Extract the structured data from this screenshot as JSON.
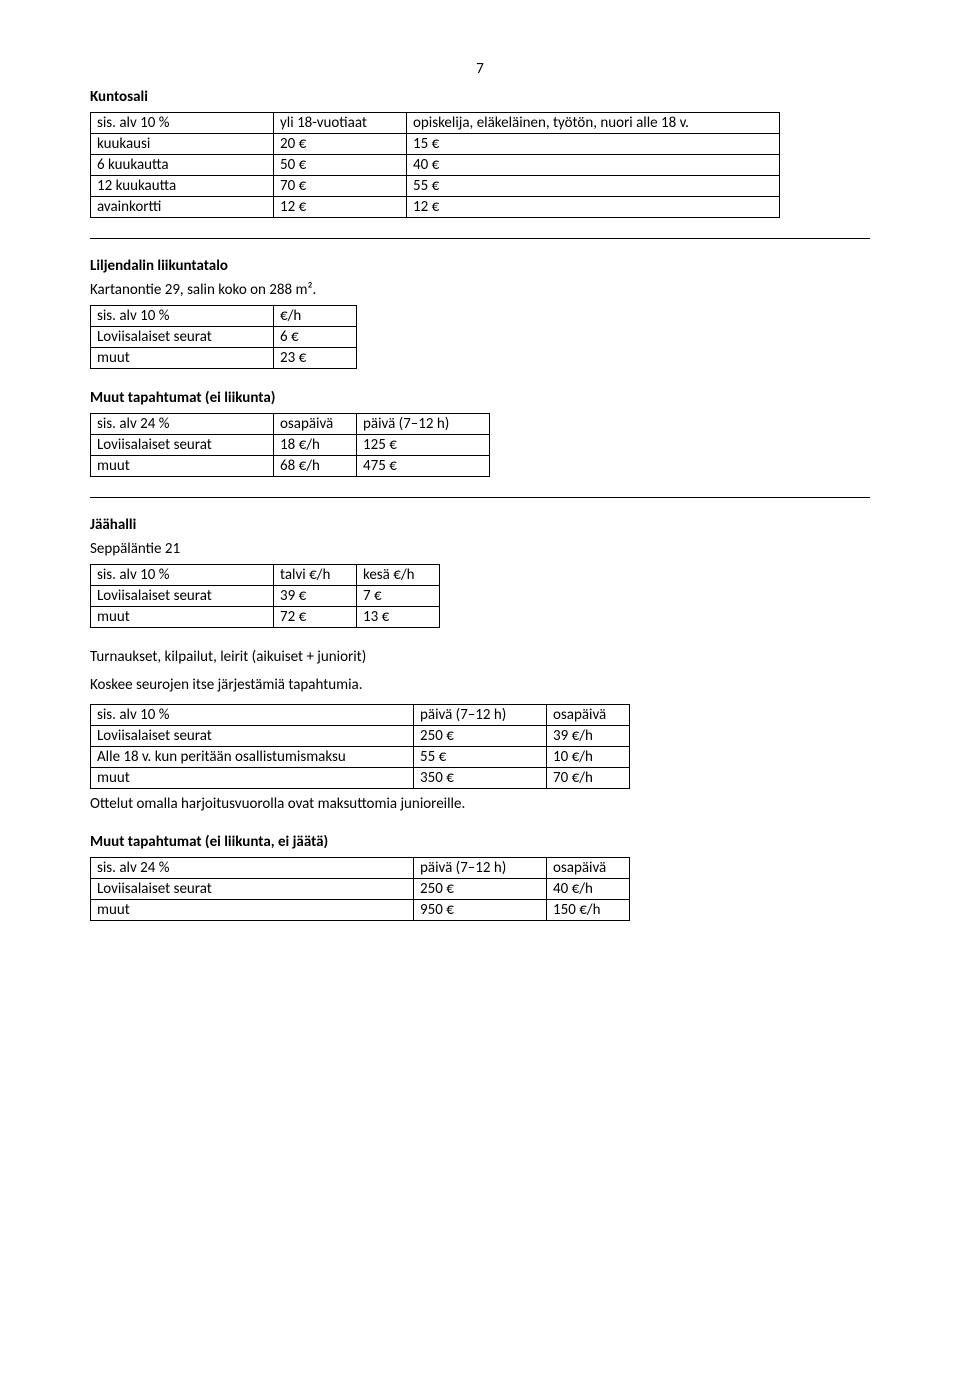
{
  "pageNumber": "7",
  "kuntosali": {
    "title": "Kuntosali",
    "header": {
      "c0": "sis. alv 10 %",
      "c1": "yli 18-vuotiaat",
      "c2": "opiskelija, eläkeläinen, työtön, nuori alle 18 v."
    },
    "rows": [
      {
        "c0": "kuukausi",
        "c1": "20 €",
        "c2": "15 €"
      },
      {
        "c0": "6 kuukautta",
        "c1": "50 €",
        "c2": "40 €"
      },
      {
        "c0": "12 kuukautta",
        "c1": "70 €",
        "c2": "55 €"
      },
      {
        "c0": "avainkortti",
        "c1": "12 €",
        "c2": "12 €"
      }
    ]
  },
  "liljendal": {
    "title": "Liljendalin liikuntatalo",
    "subtitle": "Kartanontie 29, salin koko on 288 m².",
    "header": {
      "c0": "sis. alv 10 %",
      "c1": "€/h"
    },
    "rows": [
      {
        "c0": "Loviisalaiset seurat",
        "c1": "6 €"
      },
      {
        "c0": "muut",
        "c1": "23 €"
      }
    ]
  },
  "muut1": {
    "title": "Muut tapahtumat (ei liikunta)",
    "header": {
      "c0": "sis. alv 24 %",
      "c1": "osapäivä",
      "c2": "päivä (7–12 h)"
    },
    "rows": [
      {
        "c0": "Loviisalaiset seurat",
        "c1": "18 €/h",
        "c2": "125 €"
      },
      {
        "c0": "muut",
        "c1": "68 €/h",
        "c2": "475 €"
      }
    ]
  },
  "jaahalli": {
    "title": "Jäähalli",
    "subtitle": "Seppäläntie 21",
    "header": {
      "c0": "sis. alv 10 %",
      "c1": "talvi €/h",
      "c2": "kesä €/h"
    },
    "rows": [
      {
        "c0": "Loviisalaiset seurat",
        "c1": "39 €",
        "c2": "7 €"
      },
      {
        "c0": "muut",
        "c1": "72 €",
        "c2": "13 €"
      }
    ]
  },
  "turnaukset": {
    "intro1": "Turnaukset, kilpailut, leirit (aikuiset + juniorit)",
    "intro2": "Koskee seurojen itse järjestämiä tapahtumia.",
    "header": {
      "c0": "sis. alv 10 %",
      "c1": "päivä (7–12 h)",
      "c2": "osapäivä"
    },
    "rows": [
      {
        "c0": "Loviisalaiset seurat",
        "c1": "250 €",
        "c2": "39 €/h"
      },
      {
        "c0": "Alle 18 v. kun peritään osallistumismaksu",
        "c1": "55 €",
        "c2": "10 €/h"
      },
      {
        "c0": "muut",
        "c1": "350 €",
        "c2": "70 €/h"
      }
    ],
    "note": "Ottelut omalla harjoitusvuorolla ovat maksuttomia junioreille."
  },
  "muut2": {
    "title": "Muut tapahtumat (ei liikunta, ei jäätä)",
    "header": {
      "c0": "sis. alv 24 %",
      "c1": "päivä (7–12 h)",
      "c2": "osapäivä"
    },
    "rows": [
      {
        "c0": "Loviisalaiset seurat",
        "c1": "250 €",
        "c2": "40 €/h"
      },
      {
        "c0": "muut",
        "c1": "950 €",
        "c2": "150 €/h"
      }
    ]
  }
}
